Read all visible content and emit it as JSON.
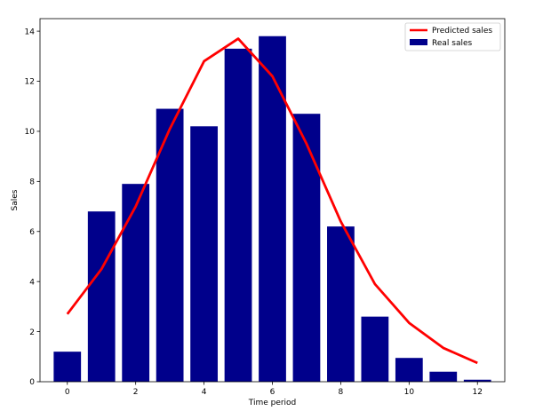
{
  "chart_data": {
    "type": "bar",
    "title": "",
    "xlabel": "Time period",
    "ylabel": "Sales",
    "xlim": [
      -0.8,
      12.8
    ],
    "ylim": [
      0,
      14.5
    ],
    "xticks": [
      0,
      2,
      4,
      6,
      8,
      10,
      12
    ],
    "yticks": [
      0,
      2,
      4,
      6,
      8,
      10,
      12,
      14
    ],
    "x": [
      0,
      1,
      2,
      3,
      4,
      5,
      6,
      7,
      8,
      9,
      10,
      11,
      12
    ],
    "series": [
      {
        "name": "Real sales",
        "type": "bar",
        "color": "#00008b",
        "values": [
          1.2,
          6.8,
          7.9,
          10.9,
          10.2,
          13.3,
          13.8,
          10.7,
          6.2,
          2.6,
          0.95,
          0.4,
          0.08
        ]
      },
      {
        "name": "Predicted sales",
        "type": "line",
        "color": "#ff0000",
        "values": [
          2.7,
          4.5,
          7.0,
          10.1,
          12.8,
          13.7,
          12.2,
          9.5,
          6.4,
          3.9,
          2.35,
          1.35,
          0.75
        ]
      }
    ],
    "legend": {
      "position": "top-right",
      "entries": [
        "Predicted sales",
        "Real sales"
      ]
    }
  }
}
